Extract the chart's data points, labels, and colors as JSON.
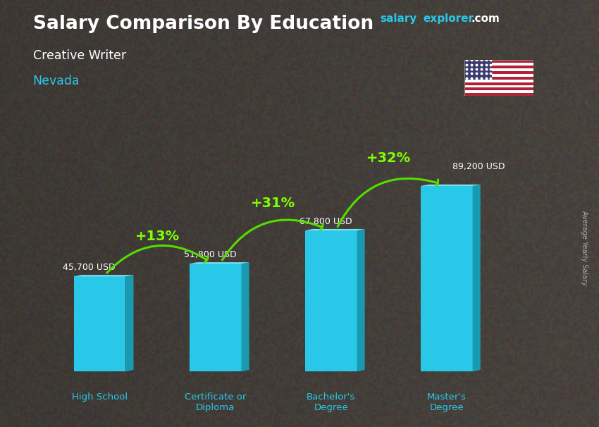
{
  "title": "Salary Comparison By Education",
  "subtitle": "Creative Writer",
  "location": "Nevada",
  "ylabel": "Average Yearly Salary",
  "categories": [
    "High School",
    "Certificate or\nDiploma",
    "Bachelor's\nDegree",
    "Master's\nDegree"
  ],
  "values": [
    45700,
    51800,
    67800,
    89200
  ],
  "value_labels": [
    "45,700 USD",
    "51,800 USD",
    "67,800 USD",
    "89,200 USD"
  ],
  "pct_labels": [
    "+13%",
    "+31%",
    "+32%"
  ],
  "bar_color_face": "#29c8e8",
  "bar_color_side": "#1a9ab0",
  "bar_color_top": "#7ae0f0",
  "background_color": "#555555",
  "title_color": "#ffffff",
  "subtitle_color": "#ffffff",
  "location_color": "#29c8e8",
  "value_label_color": "#ffffff",
  "pct_color": "#7fff00",
  "arrow_color": "#55dd00",
  "xlabel_color": "#29c8e8",
  "watermark_salary_color": "#29c8e8",
  "watermark_explorer_color": "#29c8e8",
  "watermark_com_color": "#ffffff",
  "ylim": [
    0,
    115000
  ],
  "bar_positions": [
    0,
    1,
    2,
    3
  ],
  "bar_width": 0.45,
  "figsize": [
    8.5,
    6.06
  ],
  "dpi": 100
}
